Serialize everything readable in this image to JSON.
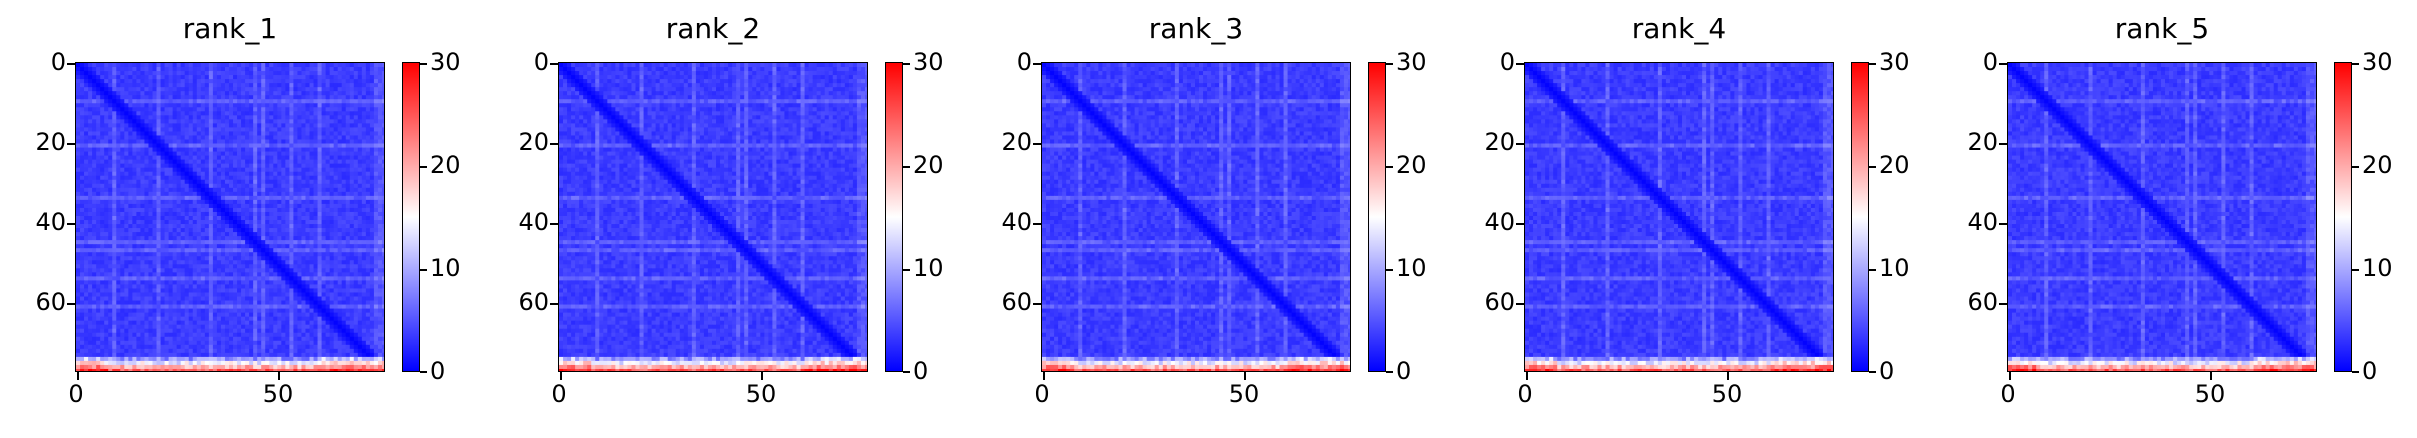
{
  "chart_data": [
    {
      "type": "heatmap",
      "title": "rank_1",
      "size": 77,
      "vmin": 0,
      "vmax": 30,
      "colormap": [
        "#0000ff",
        "#ffffff",
        "#ff0000"
      ],
      "yticks": [
        "0",
        "20",
        "40",
        "60"
      ],
      "xticks": [
        "0",
        "50"
      ],
      "colorbar_ticks": [
        "0",
        "10",
        "20",
        "30"
      ]
    },
    {
      "type": "heatmap",
      "title": "rank_2",
      "size": 77,
      "vmin": 0,
      "vmax": 30,
      "colormap": [
        "#0000ff",
        "#ffffff",
        "#ff0000"
      ],
      "yticks": [
        "0",
        "20",
        "40",
        "60"
      ],
      "xticks": [
        "0",
        "50"
      ],
      "colorbar_ticks": [
        "0",
        "10",
        "20",
        "30"
      ]
    },
    {
      "type": "heatmap",
      "title": "rank_3",
      "size": 77,
      "vmin": 0,
      "vmax": 30,
      "colormap": [
        "#0000ff",
        "#ffffff",
        "#ff0000"
      ],
      "yticks": [
        "0",
        "20",
        "40",
        "60"
      ],
      "xticks": [
        "0",
        "50"
      ],
      "colorbar_ticks": [
        "0",
        "10",
        "20",
        "30"
      ]
    },
    {
      "type": "heatmap",
      "title": "rank_4",
      "size": 77,
      "vmin": 0,
      "vmax": 30,
      "colormap": [
        "#0000ff",
        "#ffffff",
        "#ff0000"
      ],
      "yticks": [
        "0",
        "20",
        "40",
        "60"
      ],
      "xticks": [
        "0",
        "50"
      ],
      "colorbar_ticks": [
        "0",
        "10",
        "20",
        "30"
      ]
    },
    {
      "type": "heatmap",
      "title": "rank_5",
      "size": 77,
      "vmin": 0,
      "vmax": 30,
      "colormap": [
        "#0000ff",
        "#ffffff",
        "#ff0000"
      ],
      "yticks": [
        "0",
        "20",
        "40",
        "60"
      ],
      "xticks": [
        "0",
        "50"
      ],
      "colorbar_ticks": [
        "0",
        "10",
        "20",
        "30"
      ]
    }
  ]
}
